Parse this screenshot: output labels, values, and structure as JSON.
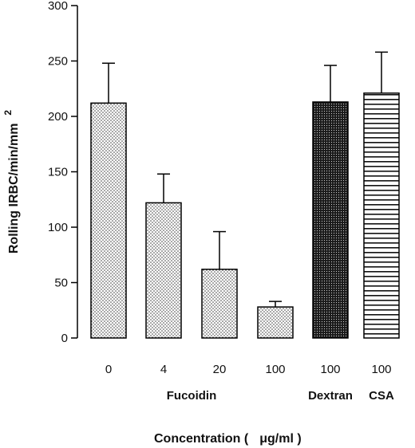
{
  "chart_data": {
    "type": "bar",
    "title": "",
    "ylabel": "Rolling IRBC/min/mm",
    "ylabel_superscript": "2",
    "xlabel_prefix": "Concentration (",
    "xlabel_unit": "μg/ml )",
    "ylim": [
      0,
      300
    ],
    "yticks": [
      0,
      50,
      100,
      150,
      200,
      250,
      300
    ],
    "categories": [
      "0",
      "4",
      "20",
      "100",
      "100",
      "100"
    ],
    "values": [
      212,
      122,
      62,
      28,
      213,
      221
    ],
    "error_upper": [
      248,
      148,
      96,
      33,
      246,
      258
    ],
    "fills": [
      "dots",
      "dots",
      "dots",
      "dots",
      "dense-dots",
      "horizontal-lines"
    ],
    "group_labels": [
      {
        "text": "Fucoidin",
        "categories": [
          1,
          2
        ]
      },
      {
        "text": "Dextran",
        "categories": [
          4
        ]
      },
      {
        "text": "CSA",
        "categories": [
          5
        ]
      }
    ],
    "grid": false
  }
}
